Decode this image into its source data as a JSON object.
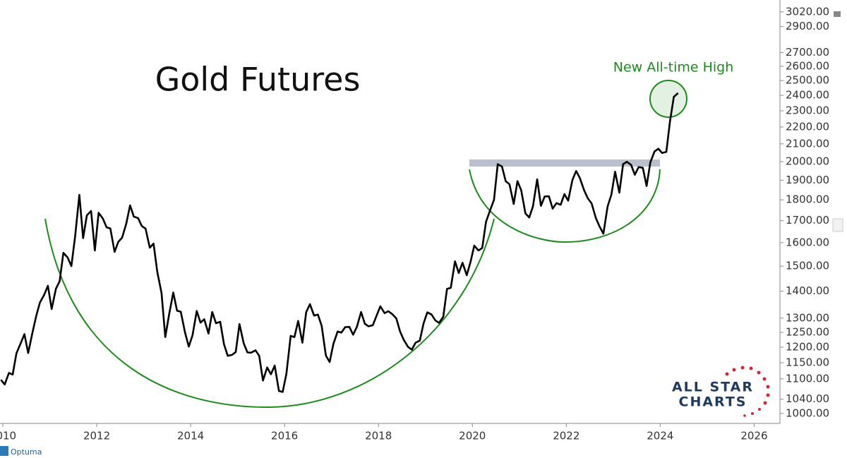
{
  "chart_data": {
    "type": "line",
    "title": "Gold Futures",
    "annotations": [
      "New All-time High"
    ],
    "log_scale": true,
    "grid": false,
    "xlim": [
      2009.94,
      2026.55
    ],
    "xticks": [
      2010,
      2012,
      2014,
      2016,
      2018,
      2020,
      2022,
      2024,
      2026
    ],
    "ylim": [
      973,
      3120
    ],
    "yticks": [
      {
        "value": 1000,
        "label": "1000.00"
      },
      {
        "value": 1040,
        "label": "1040.00"
      },
      {
        "value": 1100,
        "label": "1100.00"
      },
      {
        "value": 1150,
        "label": "1150.00"
      },
      {
        "value": 1200,
        "label": "1200.00"
      },
      {
        "value": 1250,
        "label": "1250.00"
      },
      {
        "value": 1300,
        "label": "1300.00"
      },
      {
        "value": 1400,
        "label": "1400.00"
      },
      {
        "value": 1500,
        "label": "1500.00"
      },
      {
        "value": 1600,
        "label": "1600.00"
      },
      {
        "value": 1700,
        "label": "1700.00"
      },
      {
        "value": 1800,
        "label": "1800.00"
      },
      {
        "value": 1900,
        "label": "1900.00"
      },
      {
        "value": 2000,
        "label": "2000.00"
      },
      {
        "value": 2100,
        "label": "2100.00"
      },
      {
        "value": 2200,
        "label": "2200.00"
      },
      {
        "value": 2300,
        "label": "2300.00"
      },
      {
        "value": 2400,
        "label": "2400.00"
      },
      {
        "value": 2500,
        "label": "2500.00"
      },
      {
        "value": 2600,
        "label": "2600.00"
      },
      {
        "value": 2700,
        "label": "2700.00"
      },
      {
        "value": 2900,
        "label": "2900.00"
      },
      {
        "value": 3020,
        "label": "3020.00"
      }
    ],
    "x": [
      2009.96,
      2010.04,
      2010.13,
      2010.21,
      2010.29,
      2010.38,
      2010.46,
      2010.54,
      2010.63,
      2010.71,
      2010.79,
      2010.88,
      2010.96,
      2011.04,
      2011.13,
      2011.21,
      2011.29,
      2011.38,
      2011.46,
      2011.54,
      2011.63,
      2011.71,
      2011.79,
      2011.88,
      2011.96,
      2012.04,
      2012.13,
      2012.21,
      2012.29,
      2012.38,
      2012.46,
      2012.54,
      2012.63,
      2012.71,
      2012.79,
      2012.88,
      2012.96,
      2013.04,
      2013.13,
      2013.21,
      2013.29,
      2013.38,
      2013.46,
      2013.54,
      2013.63,
      2013.71,
      2013.79,
      2013.88,
      2013.96,
      2014.04,
      2014.13,
      2014.21,
      2014.29,
      2014.38,
      2014.46,
      2014.54,
      2014.63,
      2014.71,
      2014.79,
      2014.88,
      2014.96,
      2015.04,
      2015.13,
      2015.21,
      2015.29,
      2015.38,
      2015.46,
      2015.54,
      2015.63,
      2015.71,
      2015.79,
      2015.88,
      2015.96,
      2016.04,
      2016.13,
      2016.21,
      2016.29,
      2016.38,
      2016.46,
      2016.54,
      2016.63,
      2016.71,
      2016.79,
      2016.88,
      2016.96,
      2017.04,
      2017.13,
      2017.21,
      2017.29,
      2017.38,
      2017.46,
      2017.54,
      2017.63,
      2017.71,
      2017.79,
      2017.88,
      2017.96,
      2018.04,
      2018.13,
      2018.21,
      2018.29,
      2018.38,
      2018.46,
      2018.54,
      2018.63,
      2018.71,
      2018.79,
      2018.88,
      2018.96,
      2019.04,
      2019.13,
      2019.21,
      2019.29,
      2019.38,
      2019.46,
      2019.54,
      2019.63,
      2019.71,
      2019.79,
      2019.88,
      2019.96,
      2020.04,
      2020.13,
      2020.21,
      2020.29,
      2020.38,
      2020.46,
      2020.54,
      2020.63,
      2020.71,
      2020.79,
      2020.88,
      2020.96,
      2021.04,
      2021.13,
      2021.21,
      2021.29,
      2021.38,
      2021.46,
      2021.54,
      2021.63,
      2021.71,
      2021.79,
      2021.88,
      2021.96,
      2022.04,
      2022.13,
      2022.21,
      2022.29,
      2022.38,
      2022.46,
      2022.54,
      2022.63,
      2022.71,
      2022.79,
      2022.88,
      2022.96,
      2023.04,
      2023.13,
      2023.21,
      2023.29,
      2023.38,
      2023.46,
      2023.54,
      2023.63,
      2023.71,
      2023.79,
      2023.88,
      2023.96,
      2024.04,
      2024.13,
      2024.21,
      2024.29,
      2024.38
    ],
    "series": [
      {
        "color": "#000000",
        "values": [
          1097,
          1083,
          1118,
          1113,
          1180,
          1213,
          1244,
          1181,
          1248,
          1307,
          1357,
          1386,
          1421,
          1333,
          1409,
          1439,
          1556,
          1536,
          1500,
          1628,
          1825,
          1620,
          1725,
          1746,
          1566,
          1737,
          1710,
          1669,
          1664,
          1560,
          1604,
          1622,
          1687,
          1773,
          1719,
          1712,
          1675,
          1663,
          1578,
          1596,
          1476,
          1393,
          1234,
          1312,
          1395,
          1327,
          1323,
          1250,
          1202,
          1240,
          1326,
          1284,
          1296,
          1246,
          1322,
          1282,
          1287,
          1210,
          1172,
          1175,
          1184,
          1279,
          1213,
          1183,
          1182,
          1190,
          1172,
          1095,
          1135,
          1114,
          1141,
          1064,
          1061,
          1116,
          1238,
          1234,
          1290,
          1215,
          1321,
          1351,
          1309,
          1313,
          1273,
          1173,
          1152,
          1211,
          1253,
          1249,
          1268,
          1269,
          1242,
          1269,
          1322,
          1280,
          1271,
          1275,
          1309,
          1343,
          1318,
          1325,
          1315,
          1299,
          1253,
          1224,
          1201,
          1192,
          1215,
          1222,
          1281,
          1321,
          1313,
          1292,
          1283,
          1305,
          1409,
          1413,
          1520,
          1472,
          1514,
          1463,
          1517,
          1587,
          1566,
          1577,
          1694,
          1751,
          1800,
          1986,
          1973,
          1895,
          1879,
          1780,
          1895,
          1848,
          1734,
          1715,
          1768,
          1905,
          1771,
          1817,
          1818,
          1757,
          1784,
          1776,
          1829,
          1796,
          1901,
          1949,
          1911,
          1848,
          1807,
          1782,
          1712,
          1672,
          1640,
          1768,
          1826,
          1945,
          1836,
          1986,
          1999,
          1982,
          1929,
          1970,
          1966,
          1870,
          1996,
          2057,
          2072,
          2048,
          2054,
          2238,
          2390,
          2415
        ]
      }
    ]
  },
  "branding": {
    "logo": [
      "ALL STAR",
      "CHARTS"
    ],
    "footer": "Optuma"
  }
}
